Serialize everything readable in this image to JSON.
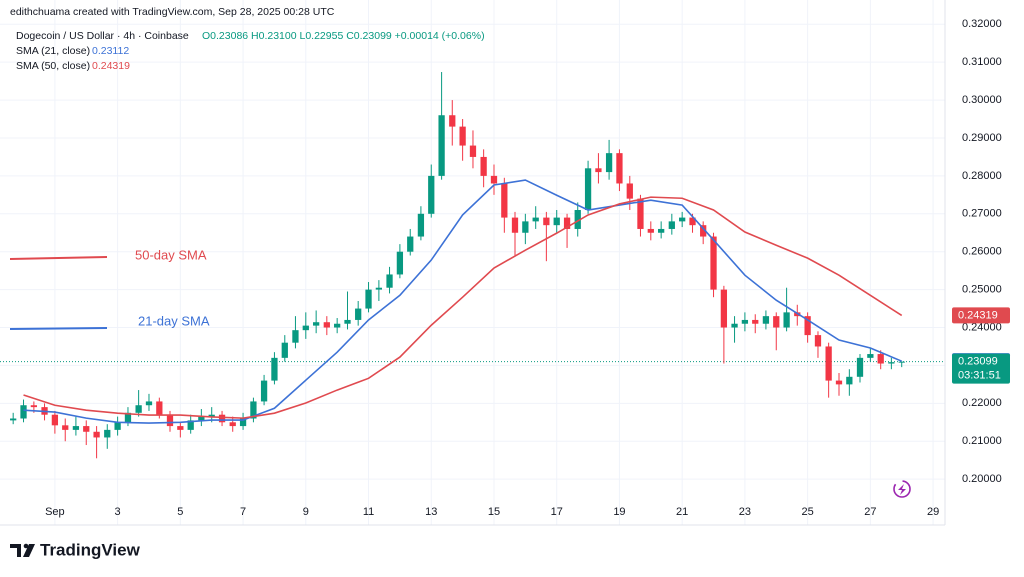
{
  "chart_data": {
    "type": "candlestick",
    "watermark": "edithchuama created with TradingView.com, Sep 28, 2025 00:28 UTC",
    "title": "Dogecoin / US Dollar · 4h · Coinbase",
    "ohlc_legend": "O0.23086 H0.23100 L0.22955 C0.23099 +0.00014 (+0.06%)",
    "countdown": "03:31:51",
    "logo": "TradingView",
    "up_color": "#089981",
    "down_color": "#f23645",
    "grid": true,
    "xlim": [
      -0.75,
      29.38
    ],
    "ylim": [
      0.1945,
      0.3264
    ],
    "xticks": [
      {
        "value": 1,
        "label": "Sep"
      },
      3,
      5,
      7,
      9,
      11,
      13,
      15,
      17,
      19,
      21,
      23,
      25,
      27,
      29
    ],
    "yticks": [
      {
        "value": 0.2,
        "label": "0.20000"
      },
      {
        "value": 0.21,
        "label": "0.21000"
      },
      {
        "value": 0.22,
        "label": "0.22000"
      },
      {
        "value": 0.23,
        "label": "0.23000"
      },
      {
        "value": 0.24,
        "label": "0.24000"
      },
      {
        "value": 0.25,
        "label": "0.25000"
      },
      {
        "value": 0.26,
        "label": "0.26000"
      },
      {
        "value": 0.27,
        "label": "0.27000"
      },
      {
        "value": 0.28,
        "label": "0.28000"
      },
      {
        "value": 0.29,
        "label": "0.29000"
      },
      {
        "value": 0.3,
        "label": "0.30000"
      },
      {
        "value": 0.31,
        "label": "0.31000"
      },
      {
        "value": 0.32,
        "label": "0.32000"
      }
    ],
    "x": [
      -0.33,
      0,
      0.33,
      0.67,
      1,
      1.33,
      1.67,
      2,
      2.33,
      2.67,
      3,
      3.33,
      3.67,
      4,
      4.33,
      4.67,
      5,
      5.33,
      5.67,
      6,
      6.33,
      6.67,
      7,
      7.33,
      7.67,
      8,
      8.33,
      8.67,
      9,
      9.33,
      9.67,
      10,
      10.33,
      10.67,
      11,
      11.33,
      11.67,
      12,
      12.33,
      12.67,
      13,
      13.33,
      13.67,
      14,
      14.33,
      14.67,
      15,
      15.33,
      15.67,
      16,
      16.33,
      16.67,
      17,
      17.33,
      17.67,
      18,
      18.33,
      18.67,
      19,
      19.33,
      19.67,
      20,
      20.33,
      20.67,
      21,
      21.33,
      21.67,
      22,
      22.33,
      22.67,
      23,
      23.33,
      23.67,
      24,
      24.33,
      24.67,
      25,
      25.33,
      25.67,
      26,
      26.33,
      26.67,
      27,
      27.33,
      27.67,
      28
    ],
    "open": [
      0.2155,
      0.216,
      0.2195,
      0.219,
      0.217,
      0.2142,
      0.213,
      0.214,
      0.2125,
      0.211,
      0.213,
      0.215,
      0.2175,
      0.2195,
      0.2205,
      0.217,
      0.214,
      0.213,
      0.2155,
      0.2165,
      0.217,
      0.215,
      0.214,
      0.216,
      0.2205,
      0.226,
      0.232,
      0.236,
      0.2393,
      0.2405,
      0.2414,
      0.24,
      0.241,
      0.242,
      0.245,
      0.25,
      0.2505,
      0.254,
      0.26,
      0.264,
      0.27,
      0.28,
      0.296,
      0.293,
      0.288,
      0.285,
      0.28,
      0.278,
      0.269,
      0.265,
      0.268,
      0.269,
      0.267,
      0.269,
      0.266,
      0.271,
      0.282,
      0.281,
      0.286,
      0.278,
      0.274,
      0.266,
      0.265,
      0.266,
      0.268,
      0.269,
      0.267,
      0.264,
      0.25,
      0.24,
      0.241,
      0.242,
      0.241,
      0.243,
      0.24,
      0.244,
      0.243,
      0.238,
      0.235,
      0.226,
      0.225,
      0.227,
      0.232,
      0.233,
      0.2305,
      0.23086
    ],
    "high": [
      0.2175,
      0.221,
      0.2205,
      0.22,
      0.218,
      0.216,
      0.2165,
      0.2155,
      0.214,
      0.2145,
      0.2165,
      0.219,
      0.2235,
      0.2225,
      0.2215,
      0.218,
      0.215,
      0.217,
      0.2185,
      0.219,
      0.218,
      0.2165,
      0.2175,
      0.2215,
      0.2275,
      0.2335,
      0.238,
      0.243,
      0.244,
      0.2445,
      0.243,
      0.2425,
      0.2495,
      0.247,
      0.252,
      0.2525,
      0.256,
      0.262,
      0.266,
      0.272,
      0.283,
      0.3074,
      0.3,
      0.295,
      0.292,
      0.287,
      0.283,
      0.2795,
      0.2705,
      0.27,
      0.272,
      0.2705,
      0.271,
      0.27,
      0.273,
      0.284,
      0.286,
      0.2895,
      0.287,
      0.28,
      0.275,
      0.268,
      0.268,
      0.27,
      0.2705,
      0.27,
      0.268,
      0.265,
      0.251,
      0.243,
      0.244,
      0.2435,
      0.2445,
      0.244,
      0.2505,
      0.246,
      0.244,
      0.239,
      0.236,
      0.228,
      0.229,
      0.233,
      0.2345,
      0.234,
      0.232,
      0.231
    ],
    "low": [
      0.2145,
      0.215,
      0.2175,
      0.2155,
      0.212,
      0.21,
      0.2115,
      0.209,
      0.2055,
      0.208,
      0.2115,
      0.214,
      0.2165,
      0.218,
      0.216,
      0.2125,
      0.211,
      0.212,
      0.214,
      0.215,
      0.214,
      0.2125,
      0.213,
      0.215,
      0.2195,
      0.225,
      0.231,
      0.2345,
      0.237,
      0.2385,
      0.238,
      0.2385,
      0.2395,
      0.2405,
      0.244,
      0.247,
      0.249,
      0.253,
      0.259,
      0.263,
      0.269,
      0.279,
      0.288,
      0.284,
      0.282,
      0.277,
      0.275,
      0.265,
      0.259,
      0.262,
      0.266,
      0.2575,
      0.265,
      0.261,
      0.264,
      0.27,
      0.278,
      0.279,
      0.276,
      0.271,
      0.264,
      0.263,
      0.2635,
      0.2645,
      0.2665,
      0.265,
      0.262,
      0.248,
      0.2305,
      0.236,
      0.239,
      0.2385,
      0.2395,
      0.234,
      0.239,
      0.2405,
      0.236,
      0.232,
      0.2215,
      0.222,
      0.222,
      0.2255,
      0.231,
      0.229,
      0.229,
      0.22955
    ],
    "close": [
      0.216,
      0.2195,
      0.219,
      0.217,
      0.2142,
      0.213,
      0.214,
      0.2125,
      0.211,
      0.213,
      0.215,
      0.2175,
      0.2195,
      0.2205,
      0.217,
      0.214,
      0.213,
      0.2155,
      0.2165,
      0.217,
      0.215,
      0.214,
      0.216,
      0.2205,
      0.226,
      0.232,
      0.236,
      0.2393,
      0.2405,
      0.2414,
      0.24,
      0.241,
      0.242,
      0.245,
      0.25,
      0.2505,
      0.254,
      0.26,
      0.264,
      0.27,
      0.28,
      0.296,
      0.293,
      0.288,
      0.285,
      0.28,
      0.278,
      0.269,
      0.265,
      0.268,
      0.269,
      0.267,
      0.269,
      0.266,
      0.271,
      0.282,
      0.281,
      0.286,
      0.278,
      0.274,
      0.266,
      0.265,
      0.266,
      0.268,
      0.269,
      0.267,
      0.264,
      0.25,
      0.24,
      0.241,
      0.242,
      0.241,
      0.243,
      0.24,
      0.244,
      0.243,
      0.238,
      0.235,
      0.226,
      0.225,
      0.227,
      0.232,
      0.233,
      0.2305,
      0.23086,
      0.23099
    ],
    "overlays": [
      {
        "name": "SMA (21, close)",
        "color": "#3d72d6",
        "x": [
          0,
          1,
          2,
          3,
          4,
          5,
          6,
          7,
          8,
          9,
          10,
          11,
          12,
          13,
          14,
          15,
          16,
          17,
          18,
          19,
          20,
          21,
          22,
          23,
          24,
          25,
          26,
          27,
          28
        ],
        "values": [
          0.2182,
          0.2177,
          0.2161,
          0.215,
          0.2148,
          0.215,
          0.2156,
          0.2156,
          0.2187,
          0.2261,
          0.2335,
          0.242,
          0.2485,
          0.2578,
          0.2697,
          0.2776,
          0.2789,
          0.2749,
          0.271,
          0.2723,
          0.2736,
          0.2723,
          0.2631,
          0.2538,
          0.2472,
          0.242,
          0.2367,
          0.2346,
          0.23112
        ]
      },
      {
        "name": "SMA (50, close)",
        "color": "#e04a4f",
        "x": [
          0,
          1,
          2,
          3,
          4,
          5,
          6,
          7,
          8,
          9,
          10,
          11,
          12,
          13,
          14,
          15,
          16,
          17,
          18,
          19,
          20,
          21,
          22,
          23,
          24,
          25,
          26,
          27,
          28
        ],
        "values": [
          0.2222,
          0.2195,
          0.2182,
          0.2174,
          0.2169,
          0.2169,
          0.2164,
          0.2161,
          0.2174,
          0.2201,
          0.2235,
          0.2266,
          0.2322,
          0.2406,
          0.248,
          0.2557,
          0.2604,
          0.2649,
          0.2697,
          0.2726,
          0.2744,
          0.2741,
          0.271,
          0.2652,
          0.2617,
          0.2583,
          0.2538,
          0.2485,
          0.24319
        ]
      }
    ],
    "annotations": [
      {
        "text": "50-day SMA",
        "color": "#e04a4f"
      },
      {
        "text": "21-day SMA",
        "color": "#3d72d6"
      }
    ]
  }
}
